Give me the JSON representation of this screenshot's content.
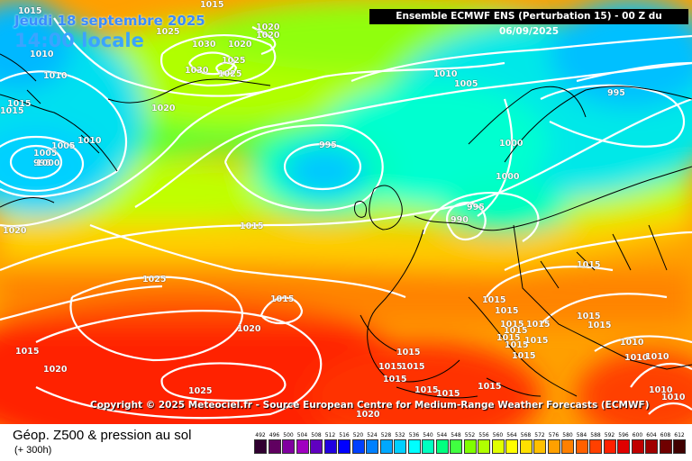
{
  "header": {
    "date_label": "Jeudi 18 septembre 2025",
    "time_label": "14:00 locale",
    "model_info": "Ensemble ECMWF ENS  (Perturbation 15)  -  00 Z du 06/09/2025"
  },
  "copyright": "Copyright © 2025 Meteociel.fr - Source European Centre for Medium-Range Weather Forecasts (ECMWF)",
  "footer": {
    "title": "Géop. Z500 & pression au sol",
    "subtitle": "(+ 300h)"
  },
  "legend": {
    "values": [
      "492",
      "496",
      "500",
      "504",
      "508",
      "512",
      "516",
      "520",
      "524",
      "528",
      "532",
      "536",
      "540",
      "544",
      "548",
      "552",
      "556",
      "560",
      "564",
      "568",
      "572",
      "576",
      "580",
      "584",
      "588",
      "592",
      "596",
      "600",
      "604",
      "608",
      "612"
    ],
    "colors": [
      "#300030",
      "#600060",
      "#8000a0",
      "#a000c0",
      "#6000c0",
      "#2000e0",
      "#0000ff",
      "#0040ff",
      "#0080ff",
      "#00a8ff",
      "#00d0ff",
      "#00ffff",
      "#00ffc0",
      "#00ff80",
      "#40ff40",
      "#80ff00",
      "#b0ff00",
      "#e0ff00",
      "#ffff00",
      "#ffe000",
      "#ffc000",
      "#ffa000",
      "#ff8000",
      "#ff6000",
      "#ff4000",
      "#ff2000",
      "#e00000",
      "#c00000",
      "#a00000",
      "#700000",
      "#400000"
    ]
  },
  "isobar_labels": [
    {
      "text": "1015"
    },
    {
      "text": "1015"
    },
    {
      "text": "1025"
    },
    {
      "text": "1030"
    },
    {
      "text": "1020"
    },
    {
      "text": "1020"
    },
    {
      "text": "1020"
    },
    {
      "text": "1025"
    },
    {
      "text": "1030"
    },
    {
      "text": "1025"
    },
    {
      "text": "1010"
    },
    {
      "text": "1010"
    },
    {
      "text": "1015"
    },
    {
      "text": "1020"
    },
    {
      "text": "1015"
    },
    {
      "text": "1010"
    },
    {
      "text": "1005"
    },
    {
      "text": "995"
    },
    {
      "text": "1005"
    },
    {
      "text": "1000"
    },
    {
      "text": "995"
    },
    {
      "text": "1010"
    },
    {
      "text": "1005"
    },
    {
      "text": "995"
    },
    {
      "text": "1000"
    },
    {
      "text": "1000"
    },
    {
      "text": "990"
    },
    {
      "text": "995"
    },
    {
      "text": "1020"
    },
    {
      "text": "1015"
    },
    {
      "text": "1025"
    },
    {
      "text": "1015"
    },
    {
      "text": "1020"
    },
    {
      "text": "1015"
    },
    {
      "text": "1020"
    },
    {
      "text": "1025"
    },
    {
      "text": "1015"
    },
    {
      "text": "1015"
    },
    {
      "text": "1015"
    },
    {
      "text": "1015"
    },
    {
      "text": "1015"
    },
    {
      "text": "1015"
    },
    {
      "text": "1015"
    },
    {
      "text": "1015"
    },
    {
      "text": "1015"
    },
    {
      "text": "1015"
    },
    {
      "text": "1015"
    },
    {
      "text": "1015"
    },
    {
      "text": "1015"
    },
    {
      "text": "1015"
    },
    {
      "text": "1015"
    },
    {
      "text": "1015"
    },
    {
      "text": "1015"
    },
    {
      "text": "1010"
    },
    {
      "text": "1010"
    },
    {
      "text": "1010"
    },
    {
      "text": "1010"
    },
    {
      "text": "1010"
    },
    {
      "text": "1020"
    },
    {
      "text": "1015"
    },
    {
      "text": "1015"
    }
  ]
}
